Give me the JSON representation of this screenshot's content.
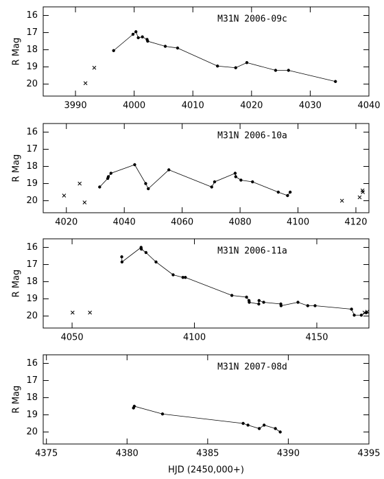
{
  "chart_data": [
    {
      "type": "line",
      "title": "M31N 2006-09c",
      "ylabel": "R Mag",
      "xlim": [
        3984.5,
        4040
      ],
      "xticks": [
        3990,
        4000,
        4010,
        4020,
        4030,
        4040
      ],
      "ylim": [
        20.7,
        15.5
      ],
      "yticks": [
        16,
        17,
        18,
        19,
        20
      ],
      "series": [
        {
          "marker": "dot",
          "connected": true,
          "color": "#000000",
          "x": [
            3996.5,
            3999.8,
            4000.3,
            4000.7,
            4001.4,
            4002.2,
            4002.3,
            4005.3,
            4007.4,
            4014.2,
            4017.3,
            4019.2,
            4024.1,
            4026.3,
            4034.3
          ],
          "values": [
            18.05,
            17.1,
            16.95,
            17.3,
            17.25,
            17.4,
            17.5,
            17.8,
            17.9,
            18.95,
            19.05,
            18.75,
            19.2,
            19.2,
            19.85
          ]
        },
        {
          "marker": "cross",
          "connected": false,
          "color": "#000000",
          "x": [
            3991.7,
            3993.2
          ],
          "values": [
            19.95,
            19.05
          ]
        }
      ]
    },
    {
      "type": "line",
      "title": "M31N 2006-10a",
      "ylabel": "R Mag",
      "xlim": [
        4012,
        4124.5
      ],
      "xticks": [
        4020,
        4040,
        4060,
        4080,
        4100,
        4120
      ],
      "ylim": [
        20.7,
        15.5
      ],
      "yticks": [
        16,
        17,
        18,
        19,
        20
      ],
      "series": [
        {
          "marker": "dot",
          "connected": true,
          "color": "#000000",
          "x": [
            4031.5,
            4034.3,
            4034.5,
            4035.4,
            4043.6,
            4047.4,
            4048.3,
            4055.4,
            4070.2,
            4071.2,
            4078.3,
            4078.5,
            4080.3,
            4084.3,
            4093.2,
            4096.4,
            4097.3
          ],
          "values": [
            19.2,
            18.7,
            18.6,
            18.4,
            17.9,
            19.0,
            19.3,
            18.2,
            19.2,
            18.9,
            18.4,
            18.6,
            18.8,
            18.9,
            19.5,
            19.7,
            19.5
          ]
        },
        {
          "marker": "cross",
          "connected": false,
          "color": "#000000",
          "x": [
            4019.2,
            4024.6,
            4026.3,
            4115.2,
            4121.3,
            4122.3,
            4122.4
          ],
          "values": [
            19.7,
            19.0,
            20.1,
            20.0,
            19.8,
            19.4,
            19.5
          ]
        }
      ]
    },
    {
      "type": "line",
      "title": "M31N 2006-11a",
      "ylabel": "R Mag",
      "xlim": [
        4038.2,
        4171.3
      ],
      "xticks": [
        4050,
        4100,
        4150
      ],
      "ylim": [
        20.7,
        15.5
      ],
      "yticks": [
        16,
        17,
        18,
        19,
        20
      ],
      "series": [
        {
          "marker": "dot",
          "connected": true,
          "color": "#000000",
          "x": [
            4070.3,
            4070.4,
            4078.2,
            4078.3,
            4080.2,
            4084.3,
            4091.3,
            4095.3,
            4096.3,
            4115.3,
            4121.3,
            4122.3,
            4122.4,
            4126.3,
            4126.4,
            4128.3,
            4135.3,
            4135.4,
            4142.3,
            4146.3,
            4149.3,
            4164.2,
            4165.3,
            4168.2,
            4170.3
          ],
          "values": [
            16.55,
            16.85,
            16.0,
            16.1,
            16.3,
            16.85,
            17.6,
            17.75,
            17.75,
            18.8,
            18.9,
            19.1,
            19.2,
            19.3,
            19.1,
            19.2,
            19.3,
            19.4,
            19.2,
            19.4,
            19.4,
            19.6,
            19.95,
            19.95,
            19.8
          ]
        },
        {
          "marker": "cross",
          "connected": false,
          "color": "#000000",
          "x": [
            4050.2,
            4057.3,
            4169.5,
            4170.6
          ],
          "values": [
            19.8,
            19.8,
            19.8,
            19.75
          ]
        }
      ]
    },
    {
      "type": "line",
      "title": "M31N 2007-08d",
      "ylabel": "R Mag",
      "xlabel": "HJD (2450,000+)",
      "xlim": [
        4374.8,
        4395
      ],
      "xticks": [
        4375,
        4380,
        4385,
        4390,
        4395
      ],
      "ylim": [
        20.7,
        15.5
      ],
      "yticks": [
        16,
        17,
        18,
        19,
        20
      ],
      "series": [
        {
          "marker": "dot",
          "connected": true,
          "color": "#000000",
          "x": [
            4380.4,
            4380.45,
            4382.2,
            4387.2,
            4387.5,
            4388.2,
            4388.5,
            4389.2,
            4389.5
          ],
          "values": [
            18.6,
            18.5,
            18.95,
            19.5,
            19.6,
            19.8,
            19.6,
            19.8,
            20.0
          ]
        }
      ]
    }
  ]
}
